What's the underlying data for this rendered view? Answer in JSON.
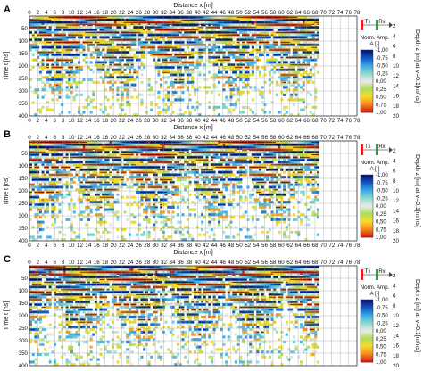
{
  "chart_data": [
    {
      "type": "heatmap",
      "panel_label": "A",
      "xlabel_top": "Distance  x [m]",
      "xlabel_bottom": "Distance  x [m]",
      "ylabel_left": "Time  t [ns]",
      "ylabel_right": "Depth  z [m] at v=0.1[m/ns]",
      "x_ticks": [
        0,
        2,
        4,
        6,
        8,
        10,
        12,
        14,
        16,
        18,
        20,
        22,
        24,
        26,
        28,
        30,
        32,
        34,
        36,
        38,
        40,
        42,
        44,
        46,
        48,
        50,
        52,
        54,
        56,
        58,
        60,
        62,
        64,
        66,
        68,
        70,
        72,
        74,
        76,
        78
      ],
      "xlim": [
        0,
        78
      ],
      "t_ticks": [
        0,
        50,
        100,
        150,
        200,
        250,
        300,
        350,
        400
      ],
      "tlim": [
        0,
        400
      ],
      "z_ticks": [
        0,
        2,
        4,
        6,
        8,
        10,
        12,
        14,
        16,
        18,
        20
      ],
      "zlim": [
        0,
        20
      ],
      "data_end_x": 69,
      "legend_title": "Norm. Amp. A [-]",
      "colorbar_ticks": [
        "-1,00",
        "-0,75",
        "-0,50",
        "-0,25",
        "0,00",
        "0,25",
        "0,50",
        "0,75",
        "1,00"
      ],
      "antenna": {
        "tx": "Tx",
        "rx": "Rx",
        "tx_color": "#e02020",
        "rx_color": "#20a040",
        "direction": "left-to-right"
      }
    },
    {
      "type": "heatmap",
      "panel_label": "B",
      "xlabel_top": "",
      "xlabel_bottom": "Distance  x [m]",
      "ylabel_left": "Time  t [ns]",
      "ylabel_right": "Depth  z [m] at v=0.1[m/ns]",
      "x_ticks": [
        0,
        2,
        4,
        6,
        8,
        10,
        12,
        14,
        16,
        18,
        20,
        22,
        24,
        26,
        28,
        30,
        32,
        34,
        36,
        38,
        40,
        42,
        44,
        46,
        48,
        50,
        52,
        54,
        56,
        58,
        60,
        62,
        64,
        66,
        68,
        70,
        72,
        74,
        76,
        78
      ],
      "xlim": [
        0,
        78
      ],
      "t_ticks": [
        0,
        50,
        100,
        150,
        200,
        250,
        300,
        350,
        400
      ],
      "tlim": [
        0,
        400
      ],
      "z_ticks": [
        0,
        2,
        4,
        6,
        8,
        10,
        12,
        14,
        16,
        18,
        20
      ],
      "zlim": [
        0,
        20
      ],
      "data_end_x": 69,
      "legend_title": "Norm. Amp. A [-]",
      "colorbar_ticks": [
        "-1,00",
        "-0,75",
        "-0,50",
        "-0,25",
        "0,00",
        "0,25",
        "0,50",
        "0,75",
        "1,00"
      ],
      "antenna": {
        "tx": "Tx",
        "rx": "Rx",
        "tx_color": "#e02020",
        "rx_color": "#20a040",
        "direction": "left-to-right"
      }
    },
    {
      "type": "heatmap",
      "panel_label": "C",
      "xlabel_top": "",
      "xlabel_bottom": "",
      "ylabel_left": "Time  t [ns]",
      "ylabel_right": "Depth  z [m] at v=0.1[m/ns]",
      "x_ticks": [
        0,
        2,
        4,
        6,
        8,
        10,
        12,
        14,
        16,
        18,
        20,
        22,
        24,
        26,
        28,
        30,
        32,
        34,
        36,
        38,
        40,
        42,
        44,
        46,
        48,
        50,
        52,
        54,
        56,
        58,
        60,
        62,
        64,
        66,
        68,
        70,
        72,
        74,
        76,
        78
      ],
      "xlim": [
        0,
        78
      ],
      "t_ticks": [
        0,
        50,
        100,
        150,
        200,
        250,
        300,
        350,
        400
      ],
      "tlim": [
        0,
        400
      ],
      "z_ticks": [
        0,
        2,
        4,
        6,
        8,
        10,
        12,
        14,
        16,
        18,
        20
      ],
      "zlim": [
        0,
        20
      ],
      "data_end_x": 69,
      "legend_title": "Norm. Amp. A [-]",
      "colorbar_ticks": [
        "-1,00",
        "-0,75",
        "-0,50",
        "-0,25",
        "0,00",
        "0,25",
        "0,50",
        "0,75",
        "1,00"
      ],
      "antenna": {
        "tx": "Tx",
        "rx": "Rx",
        "tx_color": "#e02020",
        "rx_color": "#20a040",
        "direction": "left-to-right"
      }
    }
  ]
}
